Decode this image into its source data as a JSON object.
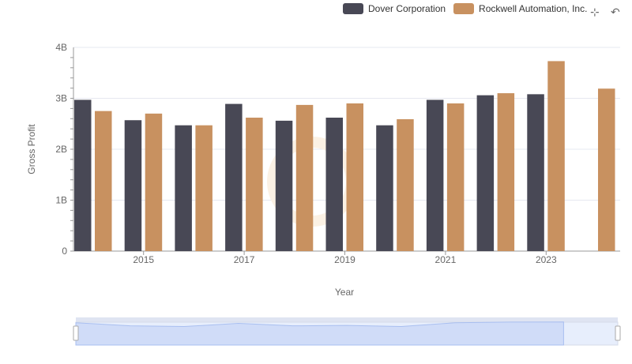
{
  "legend": [
    {
      "name": "Dover Corporation",
      "color": "#484855"
    },
    {
      "name": "Rockwell Automation, Inc.",
      "color": "#c89160"
    }
  ],
  "chart_data": {
    "type": "bar",
    "categories": [
      "2014",
      "2015",
      "2016",
      "2017",
      "2018",
      "2019",
      "2020",
      "2021",
      "2022",
      "2023",
      "2024"
    ],
    "series": [
      {
        "name": "Dover Corporation",
        "color": "#484855",
        "values": [
          2.97,
          2.57,
          2.47,
          2.89,
          2.56,
          2.62,
          2.47,
          2.97,
          3.06,
          3.08,
          null
        ]
      },
      {
        "name": "Rockwell Automation, Inc.",
        "color": "#c89160",
        "values": [
          2.75,
          2.7,
          2.47,
          2.62,
          2.87,
          2.9,
          2.59,
          2.9,
          3.1,
          3.73,
          3.19
        ]
      }
    ],
    "xlabel": "Year",
    "ylabel": "Gross Profit",
    "ylim": [
      0,
      4
    ],
    "yticks": [
      {
        "v": 0,
        "label": "0"
      },
      {
        "v": 1,
        "label": "1B"
      },
      {
        "v": 2,
        "label": "2B"
      },
      {
        "v": 3,
        "label": "3B"
      },
      {
        "v": 4,
        "label": "4B"
      }
    ],
    "xtick_labels": [
      "2015",
      "2017",
      "2019",
      "2021",
      "2023"
    ],
    "grid": true,
    "legend_position": "top-right"
  }
}
